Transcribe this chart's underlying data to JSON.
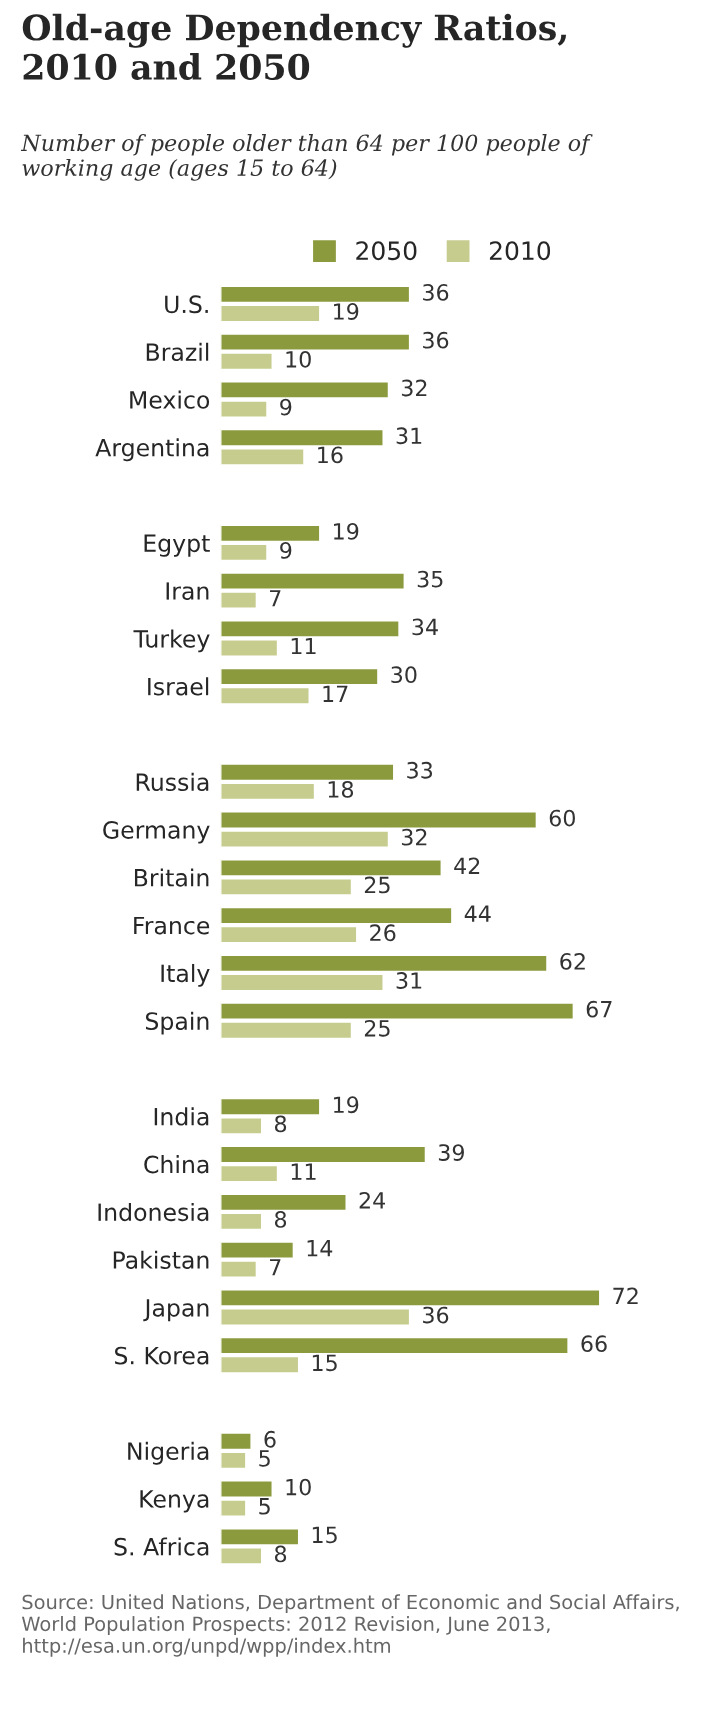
{
  "chart_data": {
    "type": "bar",
    "orientation": "horizontal",
    "title": "Old-age Dependency Ratios,\n2010 and 2050",
    "subtitle": "Number of people older than 64 per 100 people of\nworking age (ages 15 to 64)",
    "categories": [
      "U.S.",
      "Brazil",
      "Mexico",
      "Argentina",
      null,
      "Egypt",
      "Iran",
      "Turkey",
      "Israel",
      null,
      "Russia",
      "Germany",
      "Britain",
      "France",
      "Italy",
      "Spain",
      null,
      "India",
      "China",
      "Indonesia",
      "Pakistan",
      "Japan",
      "S. Korea",
      null,
      "Nigeria",
      "Kenya",
      "S. Africa"
    ],
    "series": [
      {
        "name": "2050",
        "color": "#8c9a3e",
        "values": [
          36,
          36,
          32,
          31,
          null,
          19,
          35,
          34,
          30,
          null,
          33,
          60,
          42,
          44,
          62,
          67,
          null,
          19,
          39,
          24,
          14,
          72,
          66,
          null,
          6,
          10,
          15
        ]
      },
      {
        "name": "2010",
        "color": "#c6cc8e",
        "values": [
          19,
          10,
          9,
          16,
          null,
          9,
          7,
          11,
          17,
          null,
          18,
          32,
          25,
          26,
          31,
          25,
          null,
          8,
          11,
          8,
          7,
          36,
          15,
          null,
          5,
          5,
          8
        ]
      }
    ],
    "data_labels": true,
    "legend": "top",
    "grid": false,
    "tick_labels": "y",
    "annotations": [
      "Source: United Nations, Department of Economic and Social Affairs, World Population Prospects: 2012 Revision, June 2013, http://esa.un.org/unpd/wpp/index.htm"
    ]
  }
}
